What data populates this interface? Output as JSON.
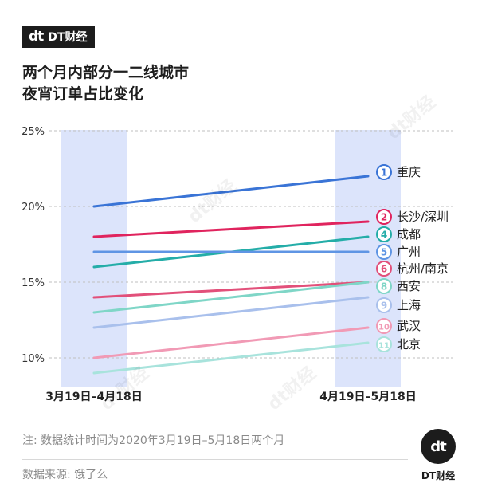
{
  "brand": {
    "logo_glyph": "dt",
    "name": "DT财经"
  },
  "title": {
    "line1": "两个月内部分一二线城市",
    "line2": "夜宵订单占比变化"
  },
  "colors": {
    "band": "#dce4fb",
    "grid": "#bfbfbf",
    "axis_text": "#333333"
  },
  "chart_data": {
    "type": "line",
    "categories": [
      "3月19日–4月18日",
      "4月19日–5月18日"
    ],
    "y_ticks": [
      "25%",
      "20%",
      "15%",
      "10%"
    ],
    "y_tick_values": [
      25,
      20,
      15,
      10
    ],
    "ylim": [
      8,
      26
    ],
    "grid": true,
    "series": [
      {
        "rank": "1",
        "name": "重庆",
        "values": [
          20,
          22
        ],
        "color": "#3a74d6"
      },
      {
        "rank": "2",
        "name": "长沙/深圳",
        "values": [
          18,
          19
        ],
        "color": "#e0245e"
      },
      {
        "rank": "4",
        "name": "成都",
        "values": [
          16,
          18
        ],
        "color": "#24ada8"
      },
      {
        "rank": "5",
        "name": "广州",
        "values": [
          17,
          17
        ],
        "color": "#5f95e4"
      },
      {
        "rank": "6",
        "name": "杭州/南京",
        "values": [
          14,
          15
        ],
        "color": "#e2507a"
      },
      {
        "rank": "8",
        "name": "西安",
        "values": [
          13,
          15
        ],
        "color": "#7fd6c7"
      },
      {
        "rank": "9",
        "name": "上海",
        "values": [
          12,
          14
        ],
        "color": "#a9c0ec"
      },
      {
        "rank": "10",
        "name": "武汉",
        "values": [
          10,
          12
        ],
        "color": "#f19ab5"
      },
      {
        "rank": "11",
        "name": "北京",
        "values": [
          9,
          11
        ],
        "color": "#a8e3dc"
      }
    ]
  },
  "note": "注: 数据统计时间为2020年3月19日–5月18日两个月",
  "source": "数据来源: 饿了么",
  "footer": {
    "logo_glyph": "dt",
    "brand": "DT财经"
  }
}
